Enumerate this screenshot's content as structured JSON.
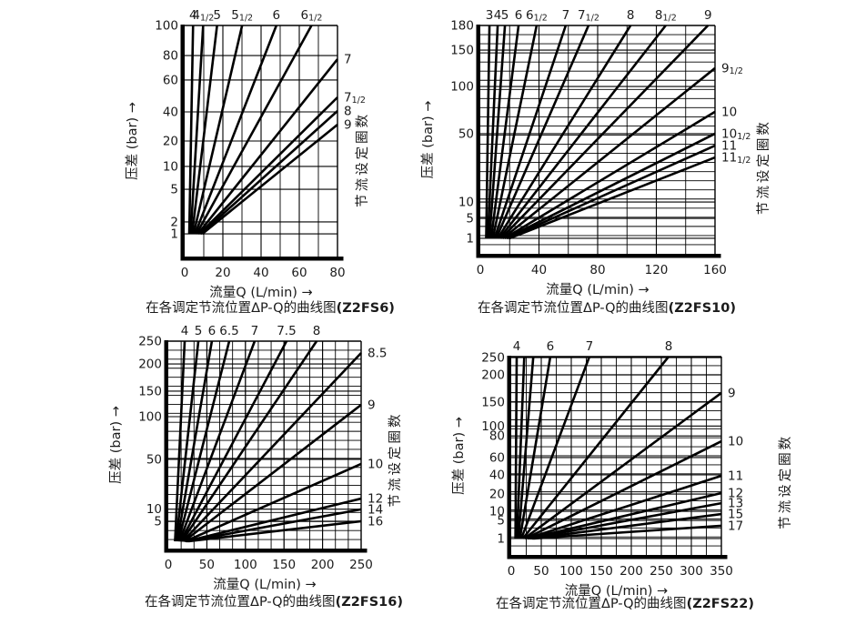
{
  "page": {
    "background": "#ffffff",
    "line_color": "#000000",
    "text_color": "#1b1b1b"
  },
  "chart_data": [
    {
      "type": "line",
      "model": "Z2FS6",
      "caption_prefix": "在各调定节流位置ΔP-Q的曲线图",
      "caption_model": "(Z2FS6)",
      "xlabel": "流量Q (L/min) →",
      "ylabel": "压差 (bar) →",
      "right_axis_label": "节流设定圈数",
      "x_unit": "L/min",
      "y_unit": "bar",
      "x_range": [
        0,
        80
      ],
      "y_range": [
        1,
        100
      ],
      "x_ticks": [
        {
          "label": "0",
          "pos": 0.0
        },
        {
          "label": "20",
          "pos": 0.25
        },
        {
          "label": "40",
          "pos": 0.5
        },
        {
          "label": "60",
          "pos": 0.75
        },
        {
          "label": "80",
          "pos": 1.0
        }
      ],
      "x_grid_divisions": 8,
      "y_ticks": [
        {
          "label": "100",
          "pos": 0.0
        },
        {
          "label": "80",
          "pos": 0.13
        },
        {
          "label": "60",
          "pos": 0.236
        },
        {
          "label": "40",
          "pos": 0.374
        },
        {
          "label": "20",
          "pos": 0.5
        },
        {
          "label": "10",
          "pos": 0.61
        },
        {
          "label": "5",
          "pos": 0.709
        },
        {
          "label": "2",
          "pos": 0.85
        },
        {
          "label": "1",
          "pos": 0.902
        }
      ],
      "y_minor_divisions": 0,
      "converge_pos": 0.902,
      "curves": [
        {
          "turns": "4",
          "half": false,
          "exit": "top",
          "pos": 0.055
        },
        {
          "turns": "4",
          "half": true,
          "exit": "top",
          "pos": 0.121
        },
        {
          "turns": "5",
          "half": false,
          "exit": "top",
          "pos": 0.212
        },
        {
          "turns": "5",
          "half": true,
          "exit": "top",
          "pos": 0.376
        },
        {
          "turns": "6",
          "half": false,
          "exit": "top",
          "pos": 0.6
        },
        {
          "turns": "6",
          "half": true,
          "exit": "top",
          "pos": 0.83
        },
        {
          "turns": "7",
          "half": false,
          "exit": "right",
          "pos": 0.146
        },
        {
          "turns": "7",
          "half": true,
          "exit": "right",
          "pos": 0.311
        },
        {
          "turns": "8",
          "half": false,
          "exit": "right",
          "pos": 0.37
        },
        {
          "turns": "9",
          "half": false,
          "exit": "right",
          "pos": 0.429
        }
      ]
    },
    {
      "type": "line",
      "model": "Z2FS10",
      "caption_prefix": "在各调定节流位置ΔP-Q的曲线图",
      "caption_model": "(Z2FS10)",
      "xlabel": "流量Q (L/min) →",
      "ylabel": "压差 (bar) →",
      "right_axis_label": "节流设定圈数",
      "x_unit": "L/min",
      "y_unit": "bar",
      "x_range": [
        0,
        160
      ],
      "y_range": [
        1,
        180
      ],
      "x_ticks": [
        {
          "label": "0",
          "pos": 0.0
        },
        {
          "label": "40",
          "pos": 0.25
        },
        {
          "label": "80",
          "pos": 0.5
        },
        {
          "label": "120",
          "pos": 0.75
        },
        {
          "label": "160",
          "pos": 1.0
        }
      ],
      "x_grid_divisions": 8,
      "y_ticks": [
        {
          "label": "180",
          "pos": 0.0
        },
        {
          "label": "150",
          "pos": 0.108
        },
        {
          "label": "100",
          "pos": 0.267
        },
        {
          "label": "50",
          "pos": 0.474
        },
        {
          "label": "10",
          "pos": 0.773
        },
        {
          "label": "5",
          "pos": 0.845
        },
        {
          "label": "1",
          "pos": 0.932
        }
      ],
      "y_minor_divisions": 25,
      "converge_pos": 0.932,
      "curves": [
        {
          "turns": "3",
          "half": false,
          "exit": "top",
          "pos": 0.039
        },
        {
          "turns": "4",
          "half": false,
          "exit": "top",
          "pos": 0.074
        },
        {
          "turns": "5",
          "half": false,
          "exit": "top",
          "pos": 0.105
        },
        {
          "turns": "6",
          "half": false,
          "exit": "top",
          "pos": 0.163
        },
        {
          "turns": "6",
          "half": true,
          "exit": "top",
          "pos": 0.24
        },
        {
          "turns": "7",
          "half": false,
          "exit": "top",
          "pos": 0.364
        },
        {
          "turns": "7",
          "half": true,
          "exit": "top",
          "pos": 0.461
        },
        {
          "turns": "8",
          "half": false,
          "exit": "top",
          "pos": 0.64
        },
        {
          "turns": "8",
          "half": true,
          "exit": "top",
          "pos": 0.79
        },
        {
          "turns": "9",
          "half": false,
          "exit": "top",
          "pos": 0.97
        },
        {
          "turns": "9",
          "half": true,
          "exit": "right",
          "pos": 0.187
        },
        {
          "turns": "10",
          "half": false,
          "exit": "right",
          "pos": 0.378
        },
        {
          "turns": "10",
          "half": true,
          "exit": "right",
          "pos": 0.474
        },
        {
          "turns": "11",
          "half": false,
          "exit": "right",
          "pos": 0.526
        },
        {
          "turns": "11",
          "half": true,
          "exit": "right",
          "pos": 0.578
        }
      ]
    },
    {
      "type": "line",
      "model": "Z2FS16",
      "caption_prefix": "在各调定节流位置ΔP-Q的曲线图",
      "caption_model": "(Z2FS16)",
      "xlabel": "流量Q (L/min) →",
      "ylabel": "压差 (bar) →",
      "right_axis_label": "节流设定圈数",
      "x_unit": "L/min",
      "y_unit": "bar",
      "x_range": [
        0,
        250
      ],
      "y_range": [
        1,
        250
      ],
      "x_ticks": [
        {
          "label": "0",
          "pos": 0.0
        },
        {
          "label": "50",
          "pos": 0.2
        },
        {
          "label": "100",
          "pos": 0.4
        },
        {
          "label": "150",
          "pos": 0.6
        },
        {
          "label": "200",
          "pos": 0.8
        },
        {
          "label": "250",
          "pos": 1.0
        }
      ],
      "x_grid_divisions": 15,
      "y_ticks": [
        {
          "label": "250",
          "pos": 0.0
        },
        {
          "label": "200",
          "pos": 0.11
        },
        {
          "label": "150",
          "pos": 0.241
        },
        {
          "label": "100",
          "pos": 0.364
        },
        {
          "label": "50",
          "pos": 0.57
        },
        {
          "label": "10",
          "pos": 0.81
        },
        {
          "label": "5",
          "pos": 0.868
        }
      ],
      "y_minor_divisions": 23,
      "converge_pos": 0.965,
      "curves": [
        {
          "turns": "4",
          "half": false,
          "exit": "top",
          "pos": 0.085
        },
        {
          "turns": "5",
          "half": false,
          "exit": "top",
          "pos": 0.156
        },
        {
          "turns": "6",
          "half": false,
          "exit": "top",
          "pos": 0.226
        },
        {
          "turns": "6.5",
          "half": false,
          "exit": "top",
          "pos": 0.316
        },
        {
          "turns": "7",
          "half": false,
          "exit": "top",
          "pos": 0.448
        },
        {
          "turns": "7.5",
          "half": false,
          "exit": "top",
          "pos": 0.613
        },
        {
          "turns": "8",
          "half": false,
          "exit": "top",
          "pos": 0.769
        },
        {
          "turns": "8.5",
          "half": false,
          "exit": "right",
          "pos": 0.057
        },
        {
          "turns": "9",
          "half": false,
          "exit": "right",
          "pos": 0.307
        },
        {
          "turns": "10",
          "half": false,
          "exit": "right",
          "pos": 0.592
        },
        {
          "turns": "12",
          "half": false,
          "exit": "right",
          "pos": 0.759
        },
        {
          "turns": "14",
          "half": false,
          "exit": "right",
          "pos": 0.811
        },
        {
          "turns": "16",
          "half": false,
          "exit": "right",
          "pos": 0.868
        }
      ]
    },
    {
      "type": "line",
      "model": "Z2FS22",
      "caption_prefix": "在各调定节流位置ΔP-Q的曲线图",
      "caption_model": "(Z2FS22)",
      "xlabel": "流量Q (L/min) →",
      "ylabel": "压差 (bar) →",
      "right_axis_label": "节流设定圈数",
      "x_unit": "L/min",
      "y_unit": "bar",
      "x_range": [
        0,
        350
      ],
      "y_range": [
        1,
        250
      ],
      "x_ticks": [
        {
          "label": "0",
          "pos": 0.0
        },
        {
          "label": "50",
          "pos": 0.1429
        },
        {
          "label": "100",
          "pos": 0.2857
        },
        {
          "label": "150",
          "pos": 0.4286
        },
        {
          "label": "200",
          "pos": 0.5714
        },
        {
          "label": "250",
          "pos": 0.7143
        },
        {
          "label": "300",
          "pos": 0.8571
        },
        {
          "label": "350",
          "pos": 1.0
        }
      ],
      "x_grid_divisions": 14,
      "y_ticks": [
        {
          "label": "250",
          "pos": 0.005
        },
        {
          "label": "200",
          "pos": 0.092
        },
        {
          "label": "150",
          "pos": 0.229
        },
        {
          "label": "100",
          "pos": 0.35
        },
        {
          "label": "80",
          "pos": 0.4
        },
        {
          "label": "60",
          "pos": 0.509
        },
        {
          "label": "40",
          "pos": 0.596
        },
        {
          "label": "20",
          "pos": 0.693
        },
        {
          "label": "10",
          "pos": 0.78
        },
        {
          "label": "5",
          "pos": 0.826
        },
        {
          "label": "1",
          "pos": 0.917
        }
      ],
      "y_minor_divisions": 22,
      "converge_pos": 0.917,
      "curves": [
        {
          "turns": "4",
          "half": false,
          "exit": "top",
          "pos": 0.026
        },
        {
          "turns": "",
          "half": false,
          "exit": "top",
          "pos": 0.062
        },
        {
          "turns": "",
          "half": false,
          "exit": "top",
          "pos": 0.105
        },
        {
          "turns": "6",
          "half": false,
          "exit": "top",
          "pos": 0.186
        },
        {
          "turns": "7",
          "half": false,
          "exit": "top",
          "pos": 0.372
        },
        {
          "turns": "8",
          "half": false,
          "exit": "top",
          "pos": 0.749
        },
        {
          "turns": "9",
          "half": false,
          "exit": "right",
          "pos": 0.183
        },
        {
          "turns": "10",
          "half": false,
          "exit": "right",
          "pos": 0.427
        },
        {
          "turns": "11",
          "half": false,
          "exit": "right",
          "pos": 0.601
        },
        {
          "turns": "12",
          "half": false,
          "exit": "right",
          "pos": 0.688
        },
        {
          "turns": "13",
          "half": false,
          "exit": "right",
          "pos": 0.739
        },
        {
          "turns": "15",
          "half": false,
          "exit": "right",
          "pos": 0.794
        },
        {
          "turns": "17",
          "half": false,
          "exit": "right",
          "pos": 0.853
        }
      ]
    }
  ]
}
